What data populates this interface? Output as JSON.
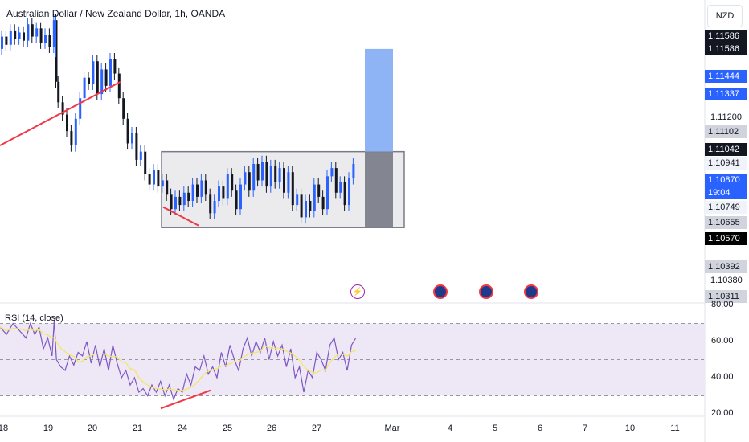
{
  "header": {
    "title": "Australian Dollar / New Zealand Dollar, 1h, OANDA",
    "currency": "NZD"
  },
  "rsi": {
    "label": "RSI (14, close)",
    "ticks": [
      "80.00",
      "60.00",
      "40.00",
      "20.00"
    ]
  },
  "price_axis": {
    "plain_ticks": [
      "1.11200",
      "1.10380"
    ],
    "labels": [
      {
        "text": "1.11586",
        "style": "dark"
      },
      {
        "text": "1.11586",
        "style": "dark"
      },
      {
        "text": "1.11444",
        "style": "blue"
      },
      {
        "text": "1.11337",
        "style": "blue"
      },
      {
        "text": "1.11102",
        "style": "gray"
      },
      {
        "text": "1.11042",
        "style": "dark"
      },
      {
        "text": "1.10941",
        "style": "light"
      },
      {
        "text": "1.10870",
        "style": "blue"
      },
      {
        "text": "19:04",
        "style": "blue"
      },
      {
        "text": "1.10749",
        "style": "light"
      },
      {
        "text": "1.10655",
        "style": "gray"
      },
      {
        "text": "1.10570",
        "style": "black"
      },
      {
        "text": "1.10392",
        "style": "gray"
      },
      {
        "text": "1.10311",
        "style": "gray"
      }
    ]
  },
  "time_axis": [
    "18",
    "19",
    "20",
    "21",
    "24",
    "25",
    "26",
    "27",
    "Mar",
    "4",
    "5",
    "6",
    "7",
    "10",
    "11"
  ],
  "colors": {
    "up": "#2962ff",
    "down": "#131722",
    "trendline": "#f23645",
    "rsi_line": "#7e57c2",
    "rsi_ma": "#f5e663",
    "rsi_band": "#ede7f6",
    "target_zone": "#8fb4f5",
    "stop_zone": "#787b86",
    "range_box": "#e6e6e9"
  },
  "chart_data": {
    "type": "candlestick",
    "symbol": "AUDNZD",
    "timeframe": "1h",
    "last_price": 1.1087,
    "countdown": "19:04",
    "consolidation_range": [
      1.1057,
      1.1094
    ],
    "long_position": {
      "entry": 1.1094,
      "target": 1.1144,
      "stop": 1.1057
    },
    "rsi": {
      "period": 14,
      "source": "close",
      "upper": 70,
      "lower": 30,
      "last": 62
    },
    "price_path": [
      [
        0,
        1.1144
      ],
      [
        2,
        1.115
      ],
      [
        4,
        1.1146
      ],
      [
        6,
        1.1153
      ],
      [
        8,
        1.1149
      ],
      [
        10,
        1.1152
      ],
      [
        12,
        1.1148
      ],
      [
        14,
        1.1156
      ],
      [
        16,
        1.115
      ],
      [
        18,
        1.1154
      ],
      [
        20,
        1.1147
      ],
      [
        22,
        1.1151
      ],
      [
        24,
        1.1145
      ],
      [
        25,
        1.1158
      ],
      [
        26,
        1.1128
      ],
      [
        28,
        1.1118
      ],
      [
        30,
        1.1112
      ],
      [
        32,
        1.1104
      ],
      [
        34,
        1.1097
      ],
      [
        36,
        1.111
      ],
      [
        38,
        1.112
      ],
      [
        40,
        1.113
      ],
      [
        42,
        1.1127
      ],
      [
        44,
        1.1138
      ],
      [
        46,
        1.1122
      ],
      [
        48,
        1.1134
      ],
      [
        50,
        1.1126
      ],
      [
        52,
        1.1139
      ],
      [
        54,
        1.1132
      ],
      [
        56,
        1.112
      ],
      [
        58,
        1.111
      ],
      [
        60,
        1.1098
      ],
      [
        62,
        1.1103
      ],
      [
        64,
        1.109
      ],
      [
        66,
        1.1094
      ],
      [
        68,
        1.1083
      ],
      [
        70,
        1.1078
      ],
      [
        72,
        1.1085
      ],
      [
        74,
        1.1077
      ],
      [
        76,
        1.108
      ],
      [
        78,
        1.1073
      ],
      [
        80,
        1.1066
      ],
      [
        82,
        1.1072
      ],
      [
        84,
        1.1068
      ],
      [
        86,
        1.1074
      ],
      [
        88,
        1.107
      ],
      [
        90,
        1.1078
      ],
      [
        92,
        1.1072
      ],
      [
        94,
        1.108
      ],
      [
        96,
        1.1073
      ],
      [
        98,
        1.1064
      ],
      [
        100,
        1.107
      ],
      [
        102,
        1.1077
      ],
      [
        104,
        1.1071
      ],
      [
        106,
        1.1083
      ],
      [
        108,
        1.1075
      ],
      [
        110,
        1.1066
      ],
      [
        112,
        1.1078
      ],
      [
        114,
        1.1084
      ],
      [
        116,
        1.1075
      ],
      [
        118,
        1.1088
      ],
      [
        120,
        1.108
      ],
      [
        122,
        1.1089
      ],
      [
        124,
        1.1077
      ],
      [
        126,
        1.1087
      ],
      [
        128,
        1.1079
      ],
      [
        130,
        1.1086
      ],
      [
        132,
        1.1074
      ],
      [
        134,
        1.1084
      ],
      [
        136,
        1.1068
      ],
      [
        138,
        1.1073
      ],
      [
        140,
        1.1062
      ],
      [
        142,
        1.107
      ],
      [
        144,
        1.1065
      ],
      [
        146,
        1.1078
      ],
      [
        148,
        1.1072
      ],
      [
        150,
        1.1066
      ],
      [
        152,
        1.1082
      ],
      [
        154,
        1.1086
      ],
      [
        156,
        1.1074
      ],
      [
        158,
        1.1079
      ],
      [
        160,
        1.1068
      ],
      [
        162,
        1.1081
      ],
      [
        164,
        1.1088
      ]
    ],
    "rsi_path": [
      [
        0,
        68
      ],
      [
        3,
        64
      ],
      [
        6,
        70
      ],
      [
        9,
        66
      ],
      [
        12,
        62
      ],
      [
        14,
        70
      ],
      [
        16,
        64
      ],
      [
        18,
        68
      ],
      [
        20,
        56
      ],
      [
        22,
        62
      ],
      [
        24,
        52
      ],
      [
        25,
        72
      ],
      [
        26,
        50
      ],
      [
        28,
        46
      ],
      [
        30,
        44
      ],
      [
        32,
        52
      ],
      [
        34,
        47
      ],
      [
        36,
        54
      ],
      [
        38,
        52
      ],
      [
        40,
        60
      ],
      [
        42,
        48
      ],
      [
        44,
        58
      ],
      [
        46,
        46
      ],
      [
        48,
        56
      ],
      [
        50,
        44
      ],
      [
        52,
        58
      ],
      [
        54,
        48
      ],
      [
        56,
        40
      ],
      [
        58,
        44
      ],
      [
        60,
        36
      ],
      [
        62,
        40
      ],
      [
        64,
        32
      ],
      [
        66,
        34
      ],
      [
        68,
        30
      ],
      [
        70,
        36
      ],
      [
        72,
        32
      ],
      [
        74,
        38
      ],
      [
        76,
        30
      ],
      [
        78,
        36
      ],
      [
        80,
        28
      ],
      [
        82,
        34
      ],
      [
        84,
        32
      ],
      [
        86,
        42
      ],
      [
        88,
        36
      ],
      [
        90,
        46
      ],
      [
        92,
        44
      ],
      [
        94,
        52
      ],
      [
        96,
        42
      ],
      [
        98,
        46
      ],
      [
        100,
        40
      ],
      [
        102,
        54
      ],
      [
        104,
        46
      ],
      [
        106,
        58
      ],
      [
        108,
        50
      ],
      [
        110,
        44
      ],
      [
        112,
        56
      ],
      [
        114,
        62
      ],
      [
        116,
        52
      ],
      [
        118,
        60
      ],
      [
        120,
        54
      ],
      [
        122,
        62
      ],
      [
        124,
        50
      ],
      [
        126,
        60
      ],
      [
        128,
        52
      ],
      [
        130,
        58
      ],
      [
        132,
        46
      ],
      [
        134,
        56
      ],
      [
        136,
        40
      ],
      [
        138,
        46
      ],
      [
        140,
        32
      ],
      [
        142,
        44
      ],
      [
        144,
        40
      ],
      [
        146,
        54
      ],
      [
        148,
        50
      ],
      [
        150,
        44
      ],
      [
        152,
        58
      ],
      [
        154,
        62
      ],
      [
        156,
        50
      ],
      [
        158,
        54
      ],
      [
        160,
        44
      ],
      [
        162,
        58
      ],
      [
        164,
        62
      ]
    ]
  }
}
